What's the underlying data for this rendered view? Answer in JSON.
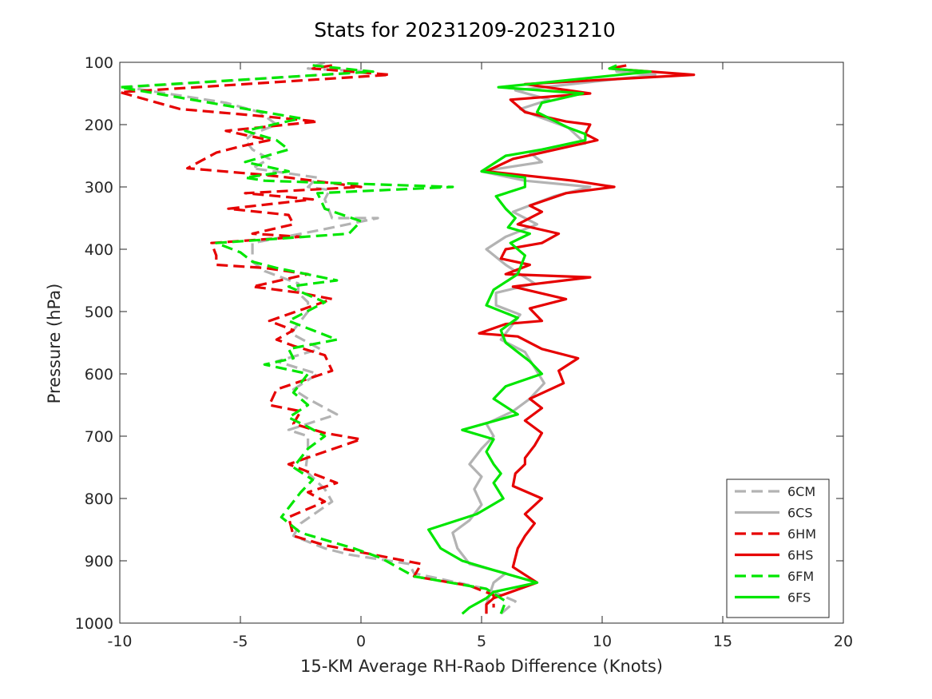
{
  "chart_data": {
    "type": "line",
    "title": "Stats for 20231209-20231210",
    "xlabel": "15-KM Average RH-Raob Difference (Knots)",
    "ylabel": "Pressure (hPa)",
    "xlim": [
      -10,
      20
    ],
    "ylim": [
      100,
      1000
    ],
    "y_reversed": true,
    "xticks": [
      -10,
      -5,
      0,
      5,
      10,
      15,
      20
    ],
    "yticks": [
      100,
      200,
      300,
      400,
      500,
      600,
      700,
      800,
      900,
      1000
    ],
    "grid": false,
    "legend_position": "bottom-right",
    "series": [
      {
        "name": "6CM",
        "color": "#b3b3b3",
        "dash": true,
        "points": [
          [
            -1.5,
            100
          ],
          [
            -2.2,
            110
          ],
          [
            0.4,
            115
          ],
          [
            -9.7,
            140
          ],
          [
            -5.6,
            165
          ],
          [
            -4.2,
            180
          ],
          [
            -3.5,
            200
          ],
          [
            -4.5,
            215
          ],
          [
            -4.8,
            225
          ],
          [
            -4.5,
            240
          ],
          [
            -3.8,
            255
          ],
          [
            -4.5,
            270
          ],
          [
            -1.8,
            285
          ],
          [
            -2.2,
            300
          ],
          [
            -1.3,
            305
          ],
          [
            -1.5,
            320
          ],
          [
            -1.2,
            350
          ],
          [
            0.7,
            350
          ],
          [
            -1.8,
            370
          ],
          [
            -4.5,
            390
          ],
          [
            -4.5,
            420
          ],
          [
            -4.0,
            435
          ],
          [
            -2.6,
            455
          ],
          [
            -2.6,
            470
          ],
          [
            -2.2,
            485
          ],
          [
            -2.2,
            500
          ],
          [
            -2.5,
            515
          ],
          [
            -2.9,
            535
          ],
          [
            -1.7,
            560
          ],
          [
            -3.5,
            580
          ],
          [
            -1.8,
            600
          ],
          [
            -2.8,
            625
          ],
          [
            -2.2,
            640
          ],
          [
            -1.0,
            665
          ],
          [
            -3.0,
            690
          ],
          [
            -2.2,
            700
          ],
          [
            -2.2,
            725
          ],
          [
            -2.3,
            755
          ],
          [
            -1.5,
            785
          ],
          [
            -1.2,
            805
          ],
          [
            -2.5,
            840
          ],
          [
            -2.8,
            860
          ],
          [
            -1.5,
            880
          ],
          [
            -0.5,
            890
          ],
          [
            2.0,
            905
          ],
          [
            2.2,
            920
          ],
          [
            5.2,
            945
          ],
          [
            6.4,
            965
          ],
          [
            5.8,
            985
          ]
        ]
      },
      {
        "name": "6CS",
        "color": "#b3b3b3",
        "dash": false,
        "points": [
          [
            10.5,
            105
          ],
          [
            10.6,
            115
          ],
          [
            12.2,
            120
          ],
          [
            6.4,
            145
          ],
          [
            7.8,
            160
          ],
          [
            6.6,
            175
          ],
          [
            7.2,
            185
          ],
          [
            8.6,
            205
          ],
          [
            9.3,
            230
          ],
          [
            7.0,
            245
          ],
          [
            7.5,
            260
          ],
          [
            5.0,
            275
          ],
          [
            6.8,
            290
          ],
          [
            9.5,
            300
          ],
          [
            8.0,
            315
          ],
          [
            6.3,
            340
          ],
          [
            7.3,
            360
          ],
          [
            6.0,
            380
          ],
          [
            5.2,
            400
          ],
          [
            6.0,
            425
          ],
          [
            7.2,
            455
          ],
          [
            5.6,
            470
          ],
          [
            5.6,
            490
          ],
          [
            6.6,
            505
          ],
          [
            6.2,
            525
          ],
          [
            5.8,
            545
          ],
          [
            6.8,
            565
          ],
          [
            7.2,
            590
          ],
          [
            7.6,
            615
          ],
          [
            7.0,
            640
          ],
          [
            6.3,
            660
          ],
          [
            5.2,
            680
          ],
          [
            5.5,
            700
          ],
          [
            5.0,
            720
          ],
          [
            4.5,
            745
          ],
          [
            5.0,
            765
          ],
          [
            4.7,
            785
          ],
          [
            5.0,
            810
          ],
          [
            4.5,
            835
          ],
          [
            3.8,
            855
          ],
          [
            4.0,
            880
          ],
          [
            4.5,
            905
          ],
          [
            6.0,
            920
          ],
          [
            5.5,
            935
          ],
          [
            5.2,
            970
          ],
          [
            5.2,
            985
          ]
        ]
      },
      {
        "name": "6HM",
        "color": "#e60000",
        "dash": true,
        "points": [
          [
            -1.2,
            105
          ],
          [
            -2.0,
            110
          ],
          [
            1.2,
            120
          ],
          [
            -10.0,
            148
          ],
          [
            -7.5,
            175
          ],
          [
            -4.5,
            185
          ],
          [
            -1.8,
            195
          ],
          [
            -5.6,
            210
          ],
          [
            -3.8,
            225
          ],
          [
            -5.0,
            235
          ],
          [
            -6.0,
            245
          ],
          [
            -7.2,
            270
          ],
          [
            -4.2,
            280
          ],
          [
            -3.0,
            285
          ],
          [
            -1.0,
            295
          ],
          [
            0.0,
            300
          ],
          [
            -4.8,
            310
          ],
          [
            -2.0,
            320
          ],
          [
            -5.5,
            335
          ],
          [
            -3.0,
            345
          ],
          [
            -2.8,
            360
          ],
          [
            -4.5,
            375
          ],
          [
            -2.5,
            380
          ],
          [
            -6.2,
            390
          ],
          [
            -6.0,
            410
          ],
          [
            -6.0,
            425
          ],
          [
            -4.0,
            430
          ],
          [
            -2.2,
            440
          ],
          [
            -4.5,
            460
          ],
          [
            -2.5,
            470
          ],
          [
            -1.2,
            480
          ],
          [
            -3.8,
            515
          ],
          [
            -2.8,
            530
          ],
          [
            -3.5,
            545
          ],
          [
            -2.8,
            555
          ],
          [
            -1.5,
            570
          ],
          [
            -1.2,
            595
          ],
          [
            -3.5,
            625
          ],
          [
            -3.8,
            650
          ],
          [
            -2.5,
            660
          ],
          [
            -2.8,
            680
          ],
          [
            -1.5,
            695
          ],
          [
            0.0,
            705
          ],
          [
            -1.5,
            725
          ],
          [
            -3.0,
            745
          ],
          [
            -1.0,
            775
          ],
          [
            -2.2,
            790
          ],
          [
            -1.5,
            805
          ],
          [
            -3.0,
            830
          ],
          [
            -2.8,
            860
          ],
          [
            -1.5,
            875
          ],
          [
            0.5,
            890
          ],
          [
            2.5,
            905
          ],
          [
            2.2,
            925
          ],
          [
            4.5,
            940
          ],
          [
            5.5,
            955
          ],
          [
            5.5,
            975
          ]
        ]
      },
      {
        "name": "6HS",
        "color": "#e60000",
        "dash": false,
        "points": [
          [
            11.0,
            105
          ],
          [
            10.3,
            110
          ],
          [
            13.8,
            120
          ],
          [
            6.8,
            135
          ],
          [
            9.5,
            150
          ],
          [
            6.2,
            160
          ],
          [
            6.8,
            180
          ],
          [
            8.5,
            195
          ],
          [
            9.5,
            200
          ],
          [
            9.3,
            215
          ],
          [
            9.8,
            225
          ],
          [
            7.5,
            245
          ],
          [
            6.3,
            255
          ],
          [
            5.2,
            275
          ],
          [
            8.8,
            290
          ],
          [
            10.5,
            300
          ],
          [
            8.5,
            310
          ],
          [
            7.0,
            330
          ],
          [
            7.5,
            340
          ],
          [
            6.5,
            360
          ],
          [
            8.2,
            375
          ],
          [
            7.5,
            390
          ],
          [
            6.0,
            400
          ],
          [
            5.8,
            415
          ],
          [
            7.0,
            425
          ],
          [
            6.0,
            440
          ],
          [
            9.5,
            445
          ],
          [
            6.3,
            460
          ],
          [
            8.5,
            480
          ],
          [
            7.0,
            495
          ],
          [
            7.5,
            515
          ],
          [
            6.0,
            520
          ],
          [
            4.9,
            535
          ],
          [
            6.5,
            540
          ],
          [
            7.5,
            560
          ],
          [
            9.0,
            575
          ],
          [
            8.2,
            595
          ],
          [
            8.4,
            615
          ],
          [
            7.0,
            640
          ],
          [
            7.5,
            655
          ],
          [
            6.8,
            675
          ],
          [
            7.5,
            695
          ],
          [
            7.2,
            715
          ],
          [
            6.8,
            735
          ],
          [
            6.8,
            745
          ],
          [
            6.4,
            760
          ],
          [
            6.3,
            780
          ],
          [
            7.5,
            800
          ],
          [
            6.8,
            825
          ],
          [
            7.2,
            840
          ],
          [
            6.8,
            860
          ],
          [
            6.5,
            880
          ],
          [
            6.3,
            910
          ],
          [
            7.3,
            935
          ],
          [
            5.5,
            960
          ],
          [
            5.2,
            970
          ],
          [
            5.2,
            985
          ]
        ]
      },
      {
        "name": "6FM",
        "color": "#00e600",
        "dash": true,
        "points": [
          [
            -2.0,
            105
          ],
          [
            0.5,
            115
          ],
          [
            -10.0,
            140
          ],
          [
            -5.5,
            170
          ],
          [
            -2.5,
            190
          ],
          [
            -4.8,
            210
          ],
          [
            -3.5,
            225
          ],
          [
            -3.0,
            240
          ],
          [
            -4.8,
            260
          ],
          [
            -3.0,
            275
          ],
          [
            -4.8,
            285
          ],
          [
            -4.0,
            290
          ],
          [
            3.8,
            300
          ],
          [
            -1.8,
            310
          ],
          [
            -1.5,
            335
          ],
          [
            0.0,
            355
          ],
          [
            -0.5,
            375
          ],
          [
            -6.0,
            390
          ],
          [
            -5.0,
            405
          ],
          [
            -4.5,
            420
          ],
          [
            -3.5,
            430
          ],
          [
            -1.0,
            450
          ],
          [
            -3.0,
            460
          ],
          [
            -1.5,
            485
          ],
          [
            -3.0,
            515
          ],
          [
            -2.0,
            530
          ],
          [
            -1.0,
            545
          ],
          [
            -3.0,
            560
          ],
          [
            -2.8,
            575
          ],
          [
            -4.0,
            585
          ],
          [
            -2.2,
            600
          ],
          [
            -2.8,
            630
          ],
          [
            -2.2,
            650
          ],
          [
            -3.0,
            670
          ],
          [
            -2.2,
            685
          ],
          [
            -1.5,
            700
          ],
          [
            -2.2,
            720
          ],
          [
            -2.8,
            750
          ],
          [
            -2.0,
            770
          ],
          [
            -2.5,
            790
          ],
          [
            -3.3,
            830
          ],
          [
            -2.5,
            855
          ],
          [
            -0.3,
            880
          ],
          [
            0.8,
            895
          ],
          [
            1.5,
            910
          ],
          [
            2.2,
            925
          ],
          [
            5.2,
            945
          ],
          [
            6.0,
            965
          ],
          [
            5.8,
            985
          ]
        ]
      },
      {
        "name": "6FS",
        "color": "#00e600",
        "dash": false,
        "points": [
          [
            10.6,
            105
          ],
          [
            10.3,
            110
          ],
          [
            12.0,
            115
          ],
          [
            5.7,
            140
          ],
          [
            9.2,
            150
          ],
          [
            7.5,
            165
          ],
          [
            7.3,
            180
          ],
          [
            8.6,
            205
          ],
          [
            9.3,
            215
          ],
          [
            9.3,
            225
          ],
          [
            7.5,
            240
          ],
          [
            6.0,
            250
          ],
          [
            5.0,
            275
          ],
          [
            6.8,
            285
          ],
          [
            6.8,
            300
          ],
          [
            5.6,
            315
          ],
          [
            6.0,
            335
          ],
          [
            6.4,
            350
          ],
          [
            6.1,
            365
          ],
          [
            7.0,
            375
          ],
          [
            6.2,
            390
          ],
          [
            6.8,
            410
          ],
          [
            6.5,
            440
          ],
          [
            5.5,
            465
          ],
          [
            5.2,
            490
          ],
          [
            6.5,
            510
          ],
          [
            5.8,
            530
          ],
          [
            6.0,
            550
          ],
          [
            6.5,
            565
          ],
          [
            7.0,
            580
          ],
          [
            7.5,
            600
          ],
          [
            6.0,
            620
          ],
          [
            5.5,
            640
          ],
          [
            6.5,
            665
          ],
          [
            4.2,
            690
          ],
          [
            5.5,
            705
          ],
          [
            5.2,
            725
          ],
          [
            5.5,
            745
          ],
          [
            5.8,
            760
          ],
          [
            5.5,
            775
          ],
          [
            5.9,
            800
          ],
          [
            4.8,
            825
          ],
          [
            2.8,
            850
          ],
          [
            3.3,
            880
          ],
          [
            4.2,
            900
          ],
          [
            5.5,
            915
          ],
          [
            7.3,
            935
          ],
          [
            5.5,
            950
          ],
          [
            5.2,
            960
          ],
          [
            4.5,
            975
          ],
          [
            4.2,
            985
          ]
        ]
      }
    ]
  }
}
